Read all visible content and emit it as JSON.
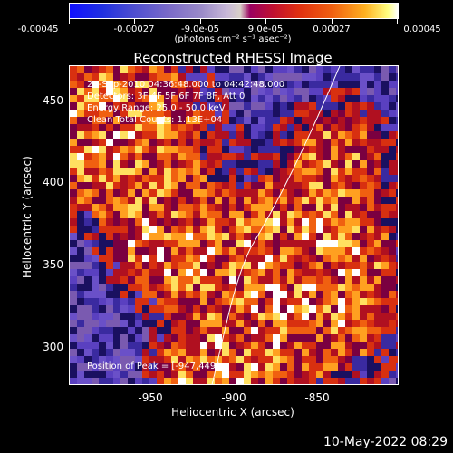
{
  "colorbar": {
    "labels": [
      "-0.00045",
      "-0.00027",
      "-9.0e-05",
      "9.0e-05",
      "0.00027",
      "0.00045"
    ],
    "units": "(photons cm⁻² s⁻¹ asec⁻²)"
  },
  "plot": {
    "title": "Reconstructed RHESSI Image",
    "xlabel": "Heliocentric X (arcsec)",
    "ylabel": "Heliocentric Y (arcsec)",
    "x_ticks": [
      "-950",
      "-900",
      "-850"
    ],
    "y_ticks": [
      "450",
      "400",
      "350",
      "300"
    ],
    "info_lines": [
      "22-Sep-2010 04:36:48.000 to 04:42:48.000",
      "Detectors: 3F 4F 5F 6F 7F 8F, Att 0",
      "Energy Range: 25.0 - 50.0 keV",
      "Clean   Total Counts: 1.13E+04"
    ],
    "peak_label": "Position of Peak = [-947,449]"
  },
  "footer": {
    "timestamp": "10-May-2022 08:29"
  }
}
